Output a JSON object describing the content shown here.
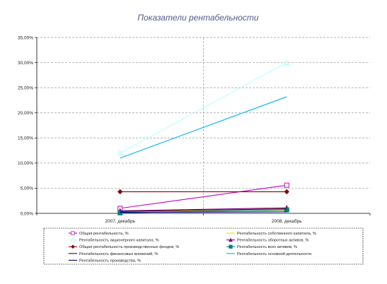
{
  "chart_data": {
    "type": "line",
    "title": "Показатели рентабельности",
    "xlabel": "",
    "ylabel": "",
    "categories": [
      "2007, декабрь",
      "2008, декабрь"
    ],
    "y_ticks": [
      "0,00%",
      "5,00%",
      "10,00%",
      "15,00%",
      "20,00%",
      "25,00%",
      "30,00%",
      "35,00%"
    ],
    "ylim": [
      0,
      35
    ],
    "grid": true,
    "legend_position": "bottom",
    "series": [
      {
        "name": "Общая рентабельность, %",
        "values": [
          1.0,
          5.6
        ],
        "color": "#c000c0",
        "marker": "square-open"
      },
      {
        "name": "Рентабельность собственного капитала, %",
        "values": [
          0.3,
          0.6
        ],
        "color": "#e8e800",
        "marker": "none"
      },
      {
        "name": "Рентабельность акционерного капитала, %",
        "values": [
          12.0,
          30.0
        ],
        "color": "#99ffff",
        "marker": "triangle-open",
        "dashed": true
      },
      {
        "name": "Рентабельность оборотных активов, %",
        "values": [
          0.5,
          1.1
        ],
        "color": "#800080",
        "marker": "triangle"
      },
      {
        "name": "Общая рентабельность производственных фондов, %",
        "values": [
          4.3,
          4.3
        ],
        "color": "#8b0000",
        "marker": "diamond"
      },
      {
        "name": "Рентабельность всех активов, %",
        "values": [
          0.1,
          0.7
        ],
        "color": "#008080",
        "marker": "square"
      },
      {
        "name": "Рентабельность финансовых вложений, %",
        "values": [
          0.4,
          0.9
        ],
        "color": "#400020",
        "marker": "none"
      },
      {
        "name": "Рентабельность основной деятельности",
        "values": [
          11.0,
          23.2
        ],
        "color": "#00b0f0",
        "marker": "none"
      },
      {
        "name": "Рентабельность производства, %",
        "values": [
          0.2,
          0.3
        ],
        "color": "#000080",
        "marker": "none"
      }
    ]
  }
}
